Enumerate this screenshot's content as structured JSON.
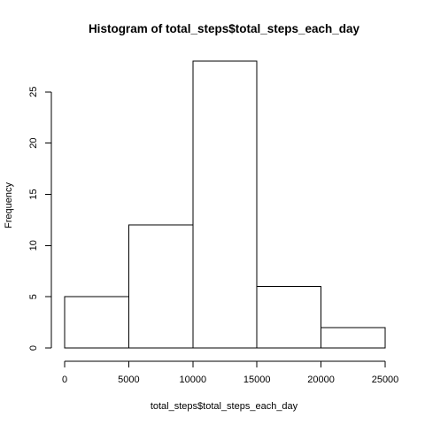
{
  "chart_data": {
    "type": "bar",
    "title": "Histogram of total_steps$total_steps_each_day",
    "xlabel": "total_steps$total_steps_each_day",
    "ylabel": "Frequency",
    "bins": [
      {
        "from": 0,
        "to": 5000,
        "count": 5
      },
      {
        "from": 5000,
        "to": 10000,
        "count": 12
      },
      {
        "from": 10000,
        "to": 15000,
        "count": 28
      },
      {
        "from": 15000,
        "to": 20000,
        "count": 6
      },
      {
        "from": 20000,
        "to": 25000,
        "count": 2
      }
    ],
    "x_ticks": [
      0,
      5000,
      10000,
      15000,
      20000,
      25000
    ],
    "x_tick_labels": [
      "0",
      "5000",
      "10000",
      "15000",
      "20000",
      "25000"
    ],
    "y_ticks": [
      0,
      5,
      10,
      15,
      20,
      25
    ],
    "y_tick_labels": [
      "0",
      "5",
      "10",
      "15",
      "20",
      "25"
    ],
    "xlim": [
      0,
      25000
    ],
    "ylim": [
      0,
      28
    ],
    "grid": false,
    "colors": {
      "bar_fill": "#ffffff",
      "bar_stroke": "#000000",
      "text": "#000000",
      "background": "#ffffff"
    }
  }
}
